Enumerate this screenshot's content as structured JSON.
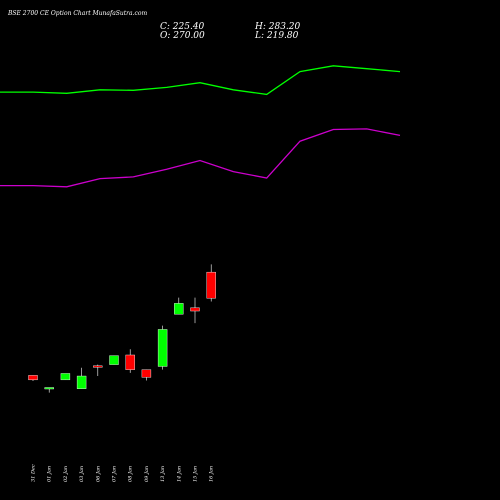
{
  "title": "BSE 2700  CE Option  Chart MunafaSutra.com",
  "ohlc": {
    "c_label": "C: 225.40",
    "h_label": "H: 283.20",
    "o_label": "O: 270.00",
    "l_label": "L: 219.80"
  },
  "colors": {
    "background": "#000000",
    "up": "#00ff00",
    "down": "#ff0000",
    "upper_band": "#00ff00",
    "lower_band": "#cc00cc",
    "text": "#ffffff"
  },
  "chart_data": {
    "type": "candlestick",
    "x_labels": [
      "31 Dec",
      "01 Jan",
      "02 Jan",
      "03 Jan",
      "06 Jan",
      "07 Jan",
      "08 Jan",
      "09 Jan",
      "13 Jan",
      "14 Jan",
      "15 Jan",
      "16 Jan"
    ],
    "candles": [
      {
        "date": "31 Dec",
        "open": 93.4,
        "high": 93.4,
        "low": 83.9,
        "close": 85.8
      },
      {
        "date": "01 Jan",
        "open": 72.7,
        "high": 72.7,
        "low": 64.0,
        "close": 72.7
      },
      {
        "date": "02 Jan",
        "open": 85.8,
        "high": 96.7,
        "low": 85.8,
        "close": 96.7
      },
      {
        "date": "03 Jan",
        "open": 70.5,
        "high": 106.5,
        "low": 70.5,
        "close": 92.3
      },
      {
        "date": "06 Jan",
        "open": 109.8,
        "high": 111.9,
        "low": 92.3,
        "close": 108.7
      },
      {
        "date": "07 Jan",
        "open": 111.9,
        "high": 127.2,
        "low": 111.9,
        "close": 127.2
      },
      {
        "date": "08 Jan",
        "open": 128.3,
        "high": 138.1,
        "low": 97.8,
        "close": 103.2
      },
      {
        "date": "09 Jan",
        "open": 103.2,
        "high": 103.2,
        "low": 84.7,
        "close": 90.1
      },
      {
        "date": "13 Jan",
        "open": 108.7,
        "high": 178.5,
        "low": 103.2,
        "close": 172.0
      },
      {
        "date": "14 Jan",
        "open": 198.0,
        "high": 226.4,
        "low": 198.0,
        "close": 216.6
      },
      {
        "date": "15 Jan",
        "open": 209.0,
        "high": 226.4,
        "low": 182.8,
        "close": 203.5
      },
      {
        "date": "16 Jan",
        "open": 270.0,
        "high": 283.2,
        "low": 219.8,
        "close": 225.4
      }
    ],
    "bands": {
      "upper": [
        578,
        578,
        576,
        582,
        581,
        586,
        594,
        582,
        574,
        613,
        623,
        618,
        613
      ],
      "lower": [
        418,
        418,
        416,
        430,
        433,
        446,
        461,
        442,
        431,
        494,
        514,
        515,
        504
      ]
    },
    "y_range": [
      0,
      650
    ]
  }
}
